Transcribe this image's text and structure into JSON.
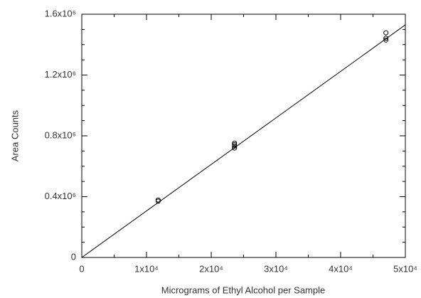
{
  "chart_data": {
    "type": "scatter",
    "x_label": "Micrograms of Ethyl Alcohol per Sample",
    "y_label": "Area Counts",
    "series": [
      {
        "color": "#000000",
        "x": [
          11800,
          11800,
          23600,
          23600,
          23600,
          23600,
          47000,
          47000,
          47000
        ],
        "values": [
          370000,
          378000,
          720000,
          732000,
          742000,
          752000,
          1430000,
          1442000,
          1478000
        ]
      }
    ],
    "fit_line": {
      "x": [
        0,
        50000
      ],
      "values": [
        0,
        1530000
      ],
      "color": "#000000"
    },
    "xlim": [
      0,
      50000
    ],
    "ylim": [
      0,
      1600000
    ],
    "xticks": [
      {
        "value": 0,
        "label": "0"
      },
      {
        "value": 10000,
        "label": "1x10⁴"
      },
      {
        "value": 20000,
        "label": "2x10⁴"
      },
      {
        "value": 30000,
        "label": "3x10⁴"
      },
      {
        "value": 40000,
        "label": "4x10⁴"
      },
      {
        "value": 50000,
        "label": "5x10⁴"
      }
    ],
    "yticks": [
      {
        "value": 0,
        "label": "0"
      },
      {
        "value": 400000,
        "label": "0.4x10⁶"
      },
      {
        "value": 800000,
        "label": "0.8x10⁶"
      },
      {
        "value": 1200000,
        "label": "1.2x10⁶"
      },
      {
        "value": 1600000,
        "label": "1.6x10⁶"
      }
    ],
    "xminorticks": [
      5000,
      15000,
      25000,
      35000,
      45000
    ],
    "yminorticks": [
      100000,
      200000,
      300000,
      500000,
      600000,
      700000,
      900000,
      1000000,
      1100000,
      1300000,
      1400000,
      1500000
    ]
  }
}
